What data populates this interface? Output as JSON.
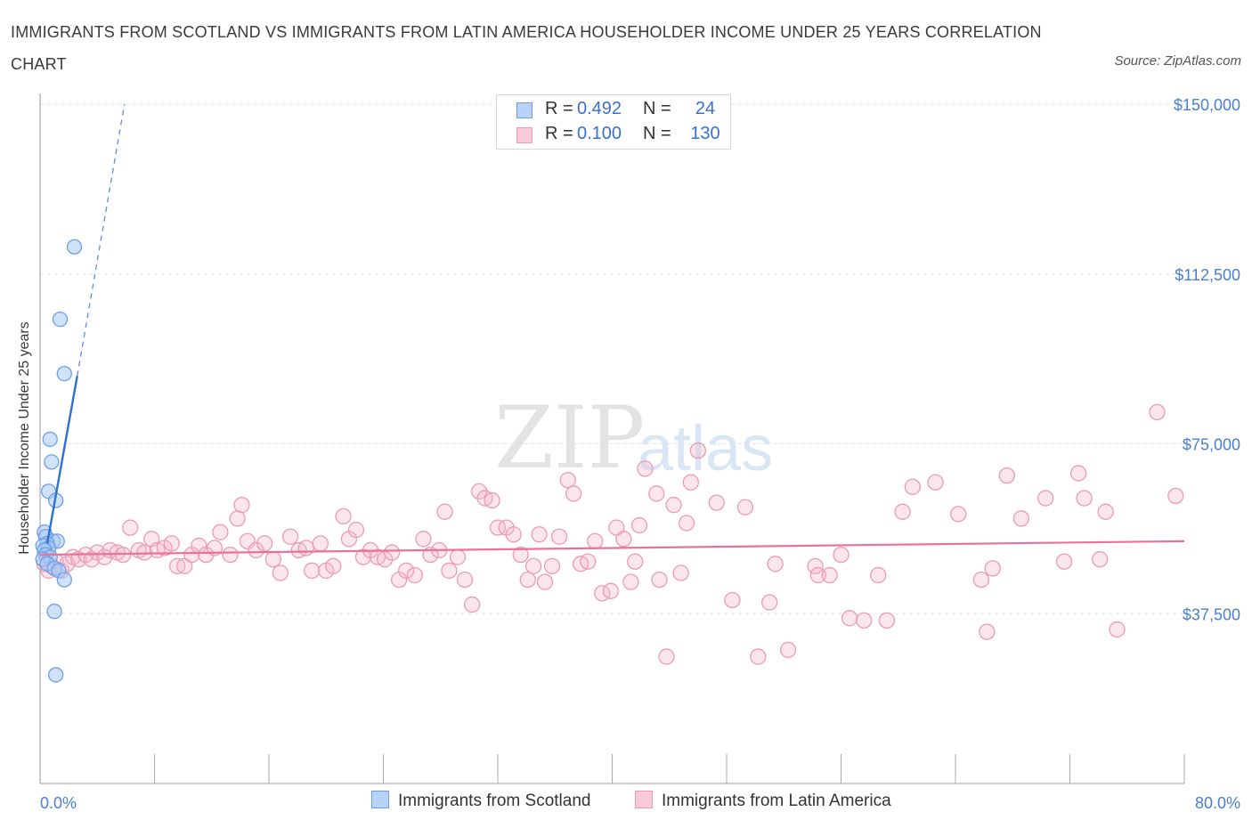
{
  "title": "IMMIGRANTS FROM SCOTLAND VS IMMIGRANTS FROM LATIN AMERICA HOUSEHOLDER INCOME UNDER 25 YEARS CORRELATION CHART",
  "source": "Source: ZipAtlas.com",
  "watermark": {
    "zip": "ZIP",
    "atlas": "atlas"
  },
  "legend": {
    "rows": [
      {
        "r_label": "R =",
        "r_value": "0.492",
        "n_label": "N =",
        "n_value": "24",
        "color": "#6a9fe8",
        "fill": "#b8d3f7"
      },
      {
        "r_label": "R =",
        "r_value": "0.100",
        "n_label": "N =",
        "n_value": "130",
        "color": "#ee9bb5",
        "fill": "#f8c9d8"
      }
    ]
  },
  "bottom_legend": [
    {
      "label": "Immigrants from Scotland",
      "color": "#6a9fe8",
      "fill": "#b8d3f7"
    },
    {
      "label": "Immigrants from Latin America",
      "color": "#ee9bb5",
      "fill": "#f8c9d8"
    }
  ],
  "chart_data": {
    "type": "scatter",
    "title": "IMMIGRANTS FROM SCOTLAND VS IMMIGRANTS FROM LATIN AMERICA HOUSEHOLDER INCOME UNDER 25 YEARS CORRELATION CHART",
    "xlabel": "",
    "ylabel": "Householder Income Under 25 years",
    "xlim": [
      0,
      80
    ],
    "ylim": [
      0,
      150000
    ],
    "x_tick_labels": [
      "0.0%",
      "80.0%"
    ],
    "y_ticks": [
      37500,
      75000,
      112500,
      150000
    ],
    "y_tick_labels": [
      "$37,500",
      "$75,000",
      "$112,500",
      "$150,000"
    ],
    "grid": true,
    "series": [
      {
        "name": "Immigrants from Scotland",
        "color": "#5a8fe0",
        "points": [
          [
            2.4,
            118500
          ],
          [
            1.4,
            102500
          ],
          [
            1.7,
            90500
          ],
          [
            0.7,
            76000
          ],
          [
            0.8,
            71000
          ],
          [
            0.6,
            64500
          ],
          [
            1.1,
            62500
          ],
          [
            0.3,
            55500
          ],
          [
            0.4,
            54500
          ],
          [
            0.9,
            53500
          ],
          [
            1.2,
            53500
          ],
          [
            0.5,
            53000
          ],
          [
            0.2,
            52500
          ],
          [
            0.6,
            52000
          ],
          [
            0.3,
            51500
          ],
          [
            0.4,
            50500
          ],
          [
            0.7,
            50000
          ],
          [
            0.2,
            49500
          ],
          [
            0.5,
            48500
          ],
          [
            1.0,
            47500
          ],
          [
            1.3,
            47000
          ],
          [
            1.7,
            45000
          ],
          [
            1.0,
            38000
          ],
          [
            1.1,
            24000
          ]
        ],
        "trend": {
          "x": [
            0.5,
            2.6
          ],
          "y": [
            53000,
            90000
          ]
        },
        "trend_extension": {
          "x": [
            2.6,
            5.9
          ],
          "y": [
            90000,
            150000
          ]
        }
      },
      {
        "name": "Immigrants from Latin America",
        "color": "#e8729a",
        "points": [
          [
            0.3,
            48500
          ],
          [
            0.6,
            47000
          ],
          [
            0.8,
            48000
          ],
          [
            1.1,
            49000
          ],
          [
            1.5,
            47000
          ],
          [
            1.9,
            48500
          ],
          [
            2.3,
            50000
          ],
          [
            2.7,
            49500
          ],
          [
            3.2,
            50500
          ],
          [
            3.6,
            49500
          ],
          [
            4.0,
            51000
          ],
          [
            4.5,
            50000
          ],
          [
            4.9,
            51500
          ],
          [
            5.4,
            51000
          ],
          [
            5.8,
            50500
          ],
          [
            6.3,
            56500
          ],
          [
            6.9,
            51500
          ],
          [
            7.3,
            51000
          ],
          [
            7.8,
            54000
          ],
          [
            8.2,
            51500
          ],
          [
            8.7,
            52000
          ],
          [
            9.2,
            53000
          ],
          [
            9.6,
            48000
          ],
          [
            10.1,
            48000
          ],
          [
            10.6,
            50500
          ],
          [
            11.1,
            52500
          ],
          [
            11.6,
            50500
          ],
          [
            12.2,
            52000
          ],
          [
            12.6,
            55500
          ],
          [
            13.3,
            50500
          ],
          [
            13.8,
            58500
          ],
          [
            14.1,
            61500
          ],
          [
            14.5,
            53500
          ],
          [
            15.1,
            51500
          ],
          [
            15.7,
            53000
          ],
          [
            16.3,
            49500
          ],
          [
            16.8,
            46500
          ],
          [
            17.5,
            54500
          ],
          [
            18.1,
            51500
          ],
          [
            18.6,
            52000
          ],
          [
            19.0,
            47000
          ],
          [
            19.6,
            53000
          ],
          [
            20.0,
            47000
          ],
          [
            20.5,
            48000
          ],
          [
            21.2,
            59000
          ],
          [
            21.6,
            54000
          ],
          [
            22.1,
            56000
          ],
          [
            22.6,
            50000
          ],
          [
            23.1,
            51500
          ],
          [
            23.6,
            50000
          ],
          [
            24.1,
            49500
          ],
          [
            24.6,
            51000
          ],
          [
            25.1,
            45000
          ],
          [
            25.6,
            47000
          ],
          [
            26.2,
            46000
          ],
          [
            26.8,
            54000
          ],
          [
            27.3,
            50500
          ],
          [
            27.9,
            51500
          ],
          [
            28.3,
            60000
          ],
          [
            28.6,
            47000
          ],
          [
            29.2,
            50000
          ],
          [
            29.7,
            45000
          ],
          [
            30.2,
            39500
          ],
          [
            30.7,
            64500
          ],
          [
            31.1,
            63000
          ],
          [
            31.6,
            62500
          ],
          [
            32.0,
            56500
          ],
          [
            32.6,
            56500
          ],
          [
            33.1,
            55000
          ],
          [
            33.6,
            50500
          ],
          [
            34.1,
            45000
          ],
          [
            34.5,
            48000
          ],
          [
            34.9,
            55000
          ],
          [
            35.3,
            44500
          ],
          [
            35.8,
            48000
          ],
          [
            36.3,
            54500
          ],
          [
            36.9,
            67000
          ],
          [
            37.3,
            64000
          ],
          [
            37.8,
            48500
          ],
          [
            38.3,
            49000
          ],
          [
            38.8,
            53500
          ],
          [
            39.3,
            42000
          ],
          [
            39.9,
            42500
          ],
          [
            40.3,
            56500
          ],
          [
            40.8,
            54000
          ],
          [
            41.3,
            44500
          ],
          [
            41.6,
            49000
          ],
          [
            41.9,
            57000
          ],
          [
            42.3,
            69500
          ],
          [
            43.1,
            64000
          ],
          [
            43.3,
            45000
          ],
          [
            43.8,
            28000
          ],
          [
            44.3,
            61500
          ],
          [
            44.8,
            46500
          ],
          [
            45.2,
            57500
          ],
          [
            45.5,
            66500
          ],
          [
            46.0,
            73500
          ],
          [
            47.3,
            62000
          ],
          [
            48.4,
            40500
          ],
          [
            49.3,
            61000
          ],
          [
            50.2,
            28000
          ],
          [
            51.0,
            40000
          ],
          [
            51.4,
            48500
          ],
          [
            52.3,
            29500
          ],
          [
            54.2,
            48000
          ],
          [
            54.4,
            46000
          ],
          [
            55.2,
            46000
          ],
          [
            56.0,
            50500
          ],
          [
            56.6,
            36500
          ],
          [
            57.6,
            36000
          ],
          [
            58.6,
            46000
          ],
          [
            59.2,
            36000
          ],
          [
            60.3,
            60000
          ],
          [
            61.0,
            65500
          ],
          [
            62.6,
            66500
          ],
          [
            64.2,
            59500
          ],
          [
            65.8,
            45000
          ],
          [
            66.2,
            33500
          ],
          [
            66.6,
            47500
          ],
          [
            67.6,
            68000
          ],
          [
            68.6,
            58500
          ],
          [
            70.3,
            63000
          ],
          [
            71.6,
            49000
          ],
          [
            72.6,
            68500
          ],
          [
            73.0,
            63000
          ],
          [
            74.1,
            49500
          ],
          [
            74.5,
            60000
          ],
          [
            75.3,
            34000
          ],
          [
            78.1,
            82000
          ],
          [
            79.4,
            63500
          ]
        ],
        "trend": {
          "x": [
            0,
            80
          ],
          "y": [
            50500,
            53500
          ]
        }
      }
    ]
  }
}
